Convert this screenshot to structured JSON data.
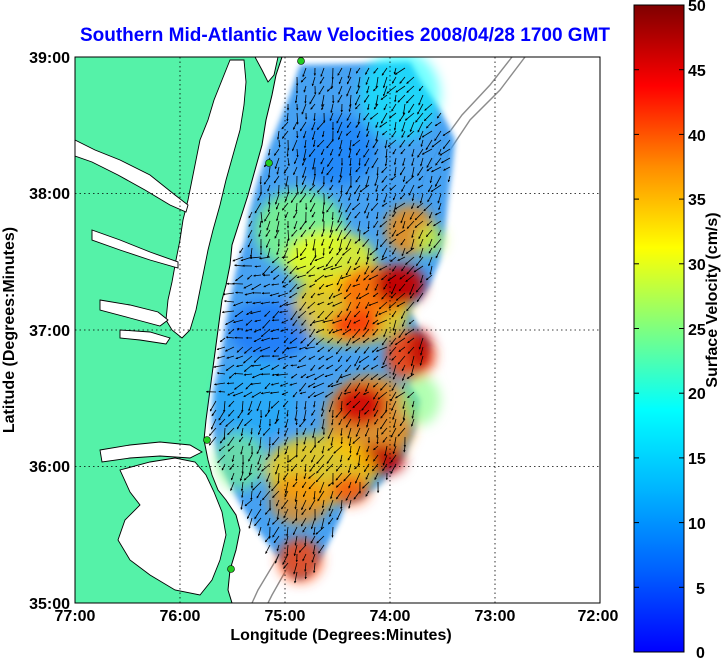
{
  "title": "Southern Mid-Atlantic Raw Velocities 2008/04/28 1700 GMT",
  "map": {
    "xlabel": "Longitude (Degrees:Minutes)",
    "ylabel": "Latitude (Degrees:Minutes)",
    "lon_range": [
      -77,
      -72
    ],
    "lat_range": [
      35,
      39
    ],
    "x_ticks": [
      "77:00",
      "76:00",
      "75:00",
      "74:00",
      "73:00",
      "72:00"
    ],
    "y_ticks": [
      "39:00",
      "38:00",
      "37:00",
      "36:00",
      "35:00"
    ],
    "grid": "dotted",
    "land_color": "#55f2a8",
    "water_color": "#ffffff",
    "coastline_color": "#000000",
    "isobath_color": "#8c8c8c",
    "station_color": "#22cc22"
  },
  "colorbar": {
    "label": "Surface Velocity (cm/s)",
    "range": [
      0,
      50
    ],
    "ticks": [
      "50",
      "45",
      "40",
      "35",
      "30",
      "25",
      "20",
      "15",
      "10",
      "5",
      "0"
    ],
    "colormap": "jet"
  }
}
